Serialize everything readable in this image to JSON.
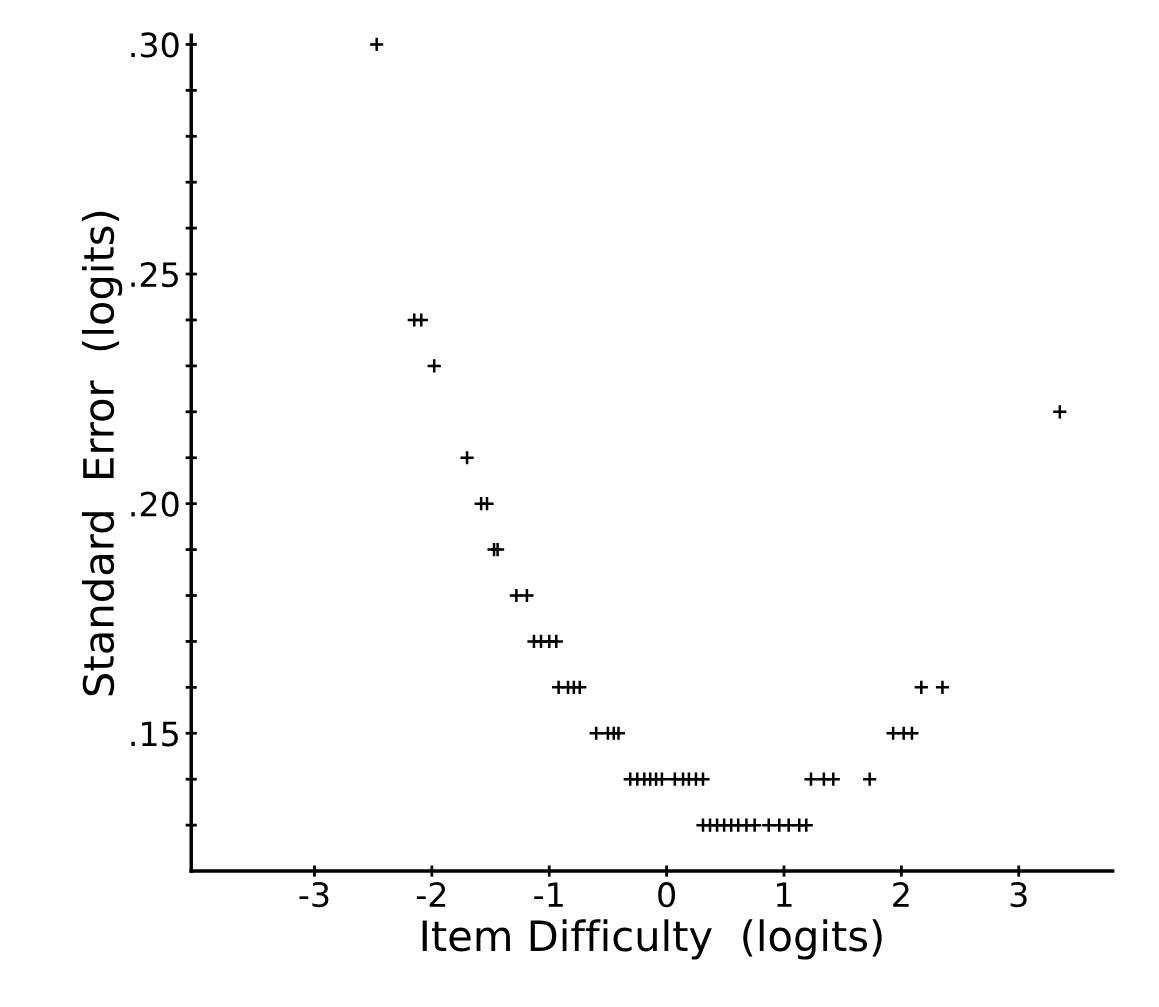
{
  "chart_data": {
    "type": "scatter",
    "xlabel": "Item Difficulty  (logits)",
    "ylabel": "Standard  Error  (logits)",
    "xlim": [
      -4.05,
      3.8
    ],
    "xticks": [
      -3,
      -2,
      -1,
      0,
      1,
      2,
      3
    ],
    "ylim": [
      0.12,
      0.302
    ],
    "yticks": [
      {
        "value": 0.13,
        "label": null
      },
      {
        "value": 0.14,
        "label": null
      },
      {
        "value": 0.15,
        "label": ".15"
      },
      {
        "value": 0.16,
        "label": null
      },
      {
        "value": 0.17,
        "label": null
      },
      {
        "value": 0.18,
        "label": null
      },
      {
        "value": 0.19,
        "label": null
      },
      {
        "value": 0.2,
        "label": ".20"
      },
      {
        "value": 0.21,
        "label": null
      },
      {
        "value": 0.22,
        "label": null
      },
      {
        "value": 0.23,
        "label": null
      },
      {
        "value": 0.24,
        "label": null
      },
      {
        "value": 0.25,
        "label": ".25"
      },
      {
        "value": 0.26,
        "label": null
      },
      {
        "value": 0.27,
        "label": null
      },
      {
        "value": 0.28,
        "label": null
      },
      {
        "value": 0.29,
        "label": null
      },
      {
        "value": 0.3,
        "label": ".30"
      }
    ],
    "marker": "cross",
    "grid": false,
    "series": [
      {
        "color": "#000000",
        "x": [
          -2.47,
          -2.15,
          -2.09,
          -1.98,
          -1.7,
          -1.58,
          -1.53,
          -1.47,
          -1.44,
          -1.28,
          -1.19,
          -1.13,
          -1.07,
          -1.0,
          -0.94,
          -0.92,
          -0.84,
          -0.79,
          -0.74,
          -0.6,
          -0.5,
          -0.45,
          -0.41,
          -0.31,
          -0.25,
          -0.19,
          -0.14,
          -0.09,
          -0.04,
          0.07,
          0.14,
          0.19,
          0.25,
          0.31,
          1.23,
          1.34,
          1.42,
          1.73,
          0.31,
          0.37,
          0.43,
          0.49,
          0.55,
          0.61,
          0.68,
          0.75,
          0.87,
          0.96,
          1.04,
          1.13,
          1.19,
          1.93,
          2.02,
          2.09,
          2.17,
          2.35,
          3.35
        ],
        "values": [
          0.3,
          0.24,
          0.24,
          0.23,
          0.21,
          0.2,
          0.2,
          0.19,
          0.19,
          0.18,
          0.18,
          0.17,
          0.17,
          0.17,
          0.17,
          0.16,
          0.16,
          0.16,
          0.16,
          0.15,
          0.15,
          0.15,
          0.15,
          0.14,
          0.14,
          0.14,
          0.14,
          0.14,
          0.14,
          0.14,
          0.14,
          0.14,
          0.14,
          0.14,
          0.14,
          0.14,
          0.14,
          0.14,
          0.13,
          0.13,
          0.13,
          0.13,
          0.13,
          0.13,
          0.13,
          0.13,
          0.13,
          0.13,
          0.13,
          0.13,
          0.13,
          0.15,
          0.15,
          0.15,
          0.16,
          0.16,
          0.22
        ]
      }
    ]
  }
}
